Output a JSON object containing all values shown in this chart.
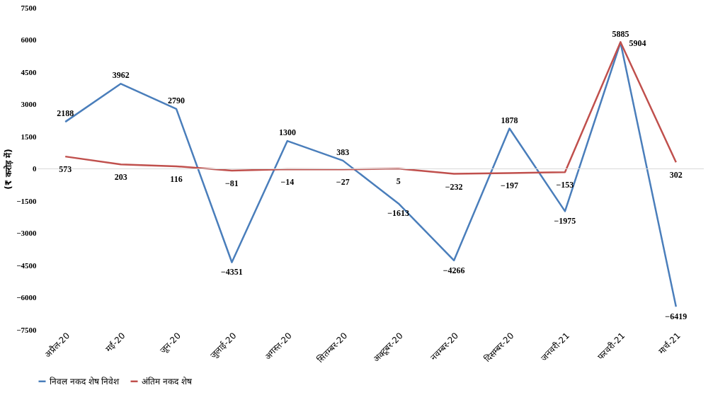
{
  "chart_data": {
    "type": "line",
    "categories": [
      "अप्रैल-20",
      "मई-20",
      "जून-20",
      "जुलाई-20",
      "अगस्त-20",
      "सितम्बर-20",
      "अक्टूबर-20",
      "नवम्बर-20",
      "दिसम्बर-20",
      "जनवरी-21",
      "फरवरी-21",
      "मार्च-21"
    ],
    "series": [
      {
        "name": "निवल नकद शेष निवेश",
        "color": "#4a7ebb",
        "values": [
          2188,
          3962,
          2790,
          -4351,
          1300,
          383,
          -1613,
          -4266,
          1878,
          -1975,
          5885,
          -6419
        ]
      },
      {
        "name": "अंतिम नकद शेष",
        "color": "#c0504d",
        "values": [
          573,
          203,
          116,
          -81,
          -14,
          -27,
          5,
          -232,
          -197,
          -153,
          5904,
          302
        ]
      }
    ],
    "ylabel": "(₹ करोड़ में)",
    "ylim": [
      -7500,
      7500
    ],
    "yticks": [
      -7500,
      -6000,
      -4500,
      -3000,
      -1500,
      0,
      1500,
      3000,
      4500,
      6000,
      7500
    ],
    "ref_lines": [
      {
        "axis": "y",
        "value": 0,
        "color": "#d9d9d9"
      }
    ],
    "data_labels": true,
    "grid": false,
    "legend": "bottom",
    "marker": "none",
    "line_style": "solid"
  }
}
